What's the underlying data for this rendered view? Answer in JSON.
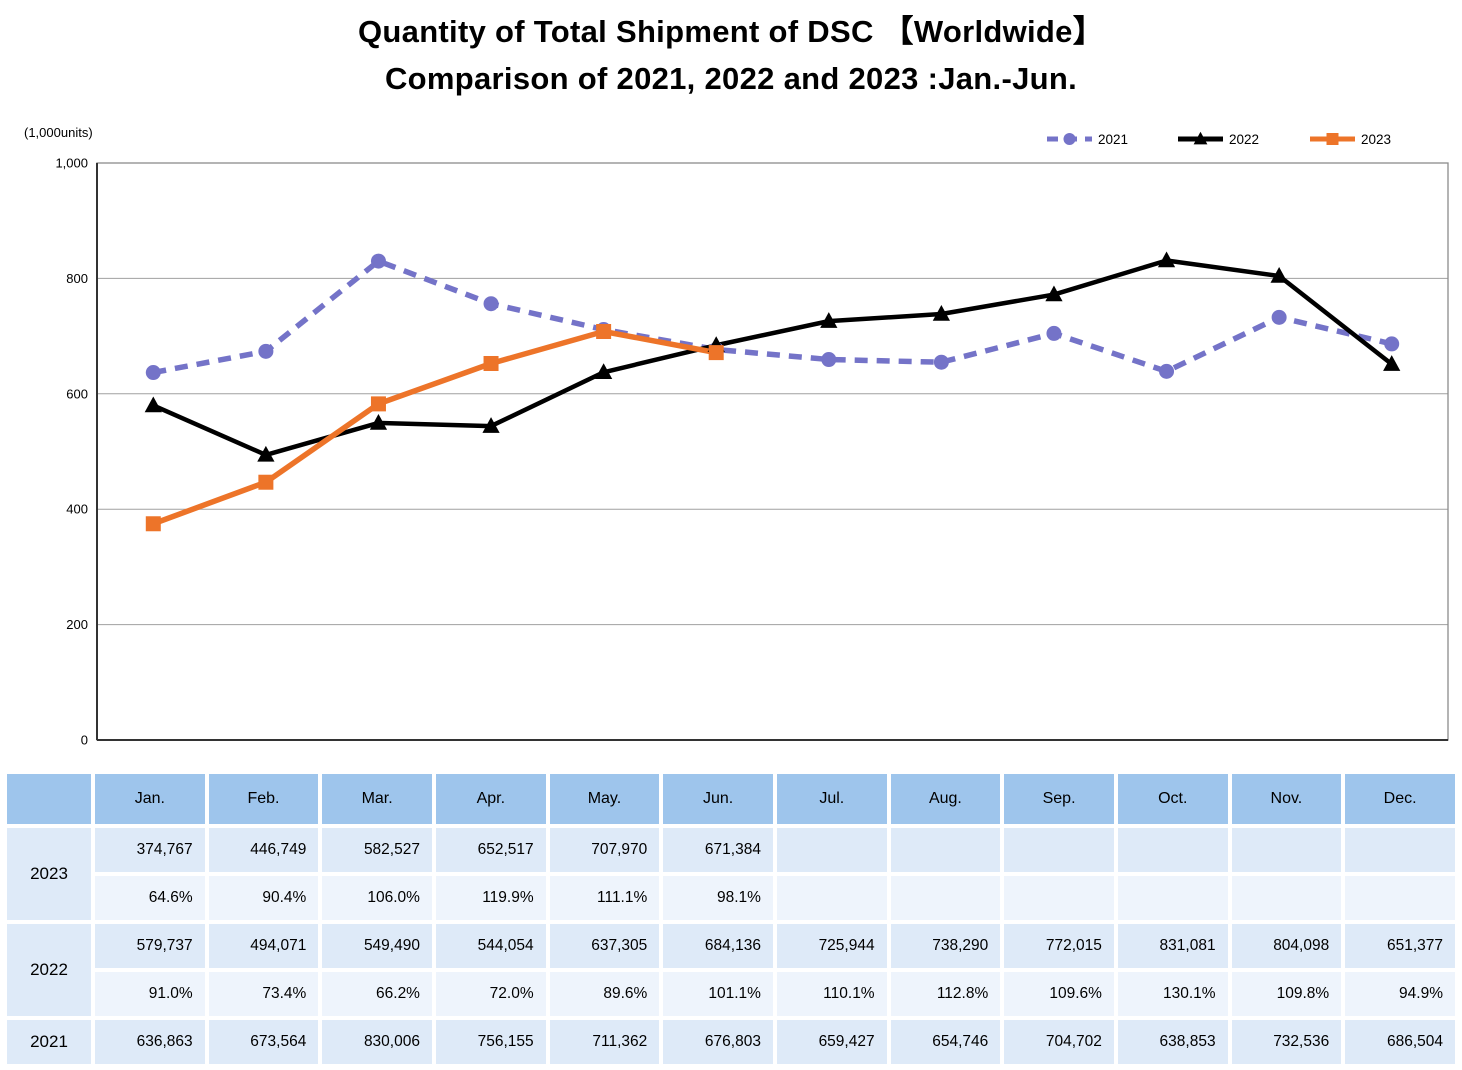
{
  "title": {
    "line1": "Quantity of Total Shipment of DSC 【Worldwide】",
    "line2": "Comparison of 2021, 2022 and 2023 :Jan.-Jun."
  },
  "chart_data": {
    "type": "line",
    "unit_label": "(1,000units)",
    "categories": [
      "Jan.",
      "Feb.",
      "Mar.",
      "Apr.",
      "May.",
      "Jun.",
      "Jul.",
      "Aug.",
      "Sep.",
      "Oct.",
      "Nov.",
      "Dec."
    ],
    "y_axis": {
      "min": 0,
      "max": 1000,
      "step": 200,
      "tick_labels": [
        "0",
        "200",
        "400",
        "600",
        "800",
        "1,000"
      ],
      "grid": true
    },
    "legend": {
      "position": "top-right",
      "entries": [
        "2021",
        "2022",
        "2023"
      ]
    },
    "series": [
      {
        "name": "2021",
        "color": "#7473C8",
        "marker": "circle",
        "dashed": true,
        "values": [
          636863,
          673564,
          830006,
          756155,
          711362,
          676803,
          659427,
          654746,
          704702,
          638853,
          732536,
          686504
        ]
      },
      {
        "name": "2022",
        "color": "#000000",
        "marker": "triangle",
        "dashed": false,
        "values": [
          579737,
          494071,
          549490,
          544054,
          637305,
          684136,
          725944,
          738290,
          772015,
          831081,
          804098,
          651377
        ]
      },
      {
        "name": "2023",
        "color": "#ED7429",
        "marker": "square",
        "dashed": false,
        "values": [
          374767,
          446749,
          582527,
          652517,
          707970,
          671384
        ]
      }
    ]
  },
  "table": {
    "corner_label": "",
    "months": [
      "Jan.",
      "Feb.",
      "Mar.",
      "Apr.",
      "May.",
      "Jun.",
      "Jul.",
      "Aug.",
      "Sep.",
      "Oct.",
      "Nov.",
      "Dec."
    ],
    "groups": [
      {
        "year": "2023",
        "values": [
          "374,767",
          "446,749",
          "582,527",
          "652,517",
          "707,970",
          "671,384",
          "",
          "",
          "",
          "",
          "",
          ""
        ],
        "ratios": [
          "64.6%",
          "90.4%",
          "106.0%",
          "119.9%",
          "111.1%",
          "98.1%",
          "",
          "",
          "",
          "",
          "",
          ""
        ]
      },
      {
        "year": "2022",
        "values": [
          "579,737",
          "494,071",
          "549,490",
          "544,054",
          "637,305",
          "684,136",
          "725,944",
          "738,290",
          "772,015",
          "831,081",
          "804,098",
          "651,377"
        ],
        "ratios": [
          "91.0%",
          "73.4%",
          "66.2%",
          "72.0%",
          "89.6%",
          "101.1%",
          "110.1%",
          "112.8%",
          "109.6%",
          "130.1%",
          "109.8%",
          "94.9%"
        ]
      },
      {
        "year": "2021",
        "values": [
          "636,863",
          "673,564",
          "830,006",
          "756,155",
          "711,362",
          "676,803",
          "659,427",
          "654,746",
          "704,702",
          "638,853",
          "732,536",
          "686,504"
        ],
        "ratios": null
      }
    ]
  },
  "colors": {
    "table_header_bg": "#9EC5EC",
    "table_value_row_bg": "#DEEAF8",
    "table_ratio_row_bg": "#EEF4FC",
    "grid_line": "#A0A0A0",
    "plot_border": "#8C8C8C",
    "axis_line": "#333333",
    "series_2021": "#7473C8",
    "series_2022": "#000000",
    "series_2023": "#ED7429"
  }
}
